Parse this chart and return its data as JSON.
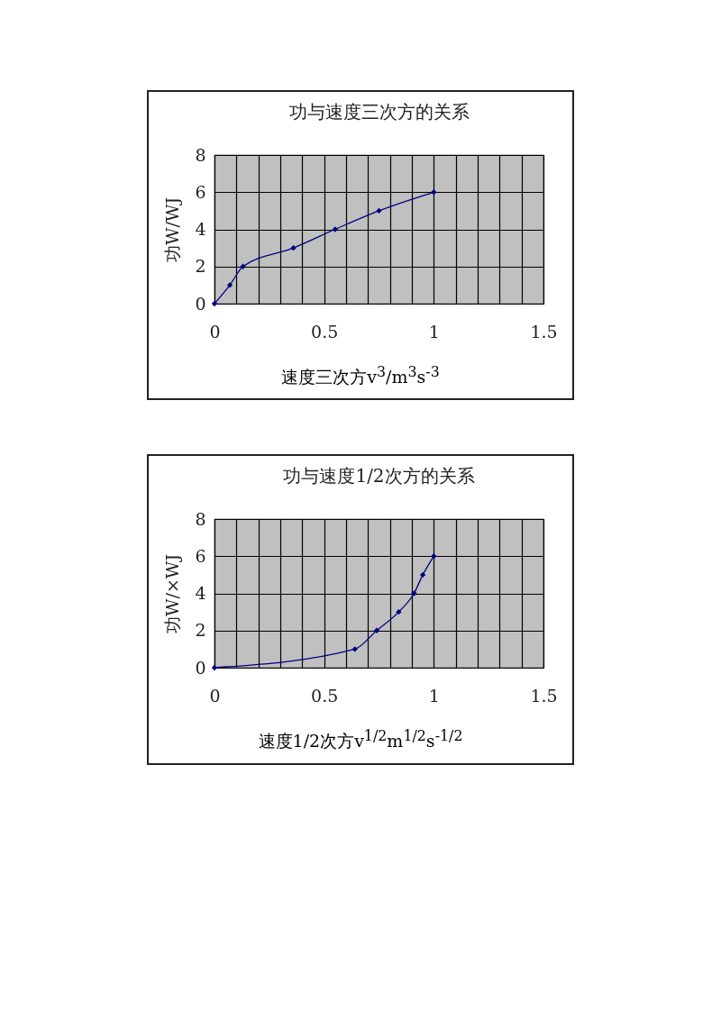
{
  "chart_data": [
    {
      "type": "line",
      "title": "功与速度三次方的关系",
      "xlabel": "速度三次方v$^{3}$/m$^{3}$s$^{-3}$",
      "ylabel": "功W/WJ",
      "series": [
        {
          "color": "#000080",
          "x": [
            0,
            0.07,
            0.13,
            0.36,
            0.55,
            0.75,
            1
          ],
          "values": [
            0,
            1,
            2,
            3,
            4,
            5,
            6
          ]
        }
      ],
      "xlim": [
        0,
        1.5
      ],
      "xticks": [
        0,
        {
          "value": 0.1,
          "label": null
        },
        {
          "value": 0.2,
          "label": null
        },
        {
          "value": 0.3,
          "label": null
        },
        {
          "value": 0.4,
          "label": null
        },
        0.5,
        {
          "value": 0.6,
          "label": null
        },
        {
          "value": 0.7,
          "label": null
        },
        {
          "value": 0.8,
          "label": null
        },
        {
          "value": 0.9,
          "label": null
        },
        1,
        {
          "value": 1.1,
          "label": null
        },
        {
          "value": 1.2,
          "label": null
        },
        {
          "value": 1.3,
          "label": null
        },
        {
          "value": 1.4,
          "label": null
        },
        1.5
      ],
      "ylim": [
        0,
        8
      ],
      "yticks": [
        0,
        2,
        4,
        6,
        8
      ],
      "grid": true,
      "marker": "diamond",
      "line_style": "solid"
    },
    {
      "type": "line",
      "title": "功与速度1/2次方的关系",
      "xlabel": "速度1/2次方v$^{1/2}$m$^{1/2}$s$^{-1/2}$",
      "ylabel": "功W/×WJ",
      "series": [
        {
          "color": "#000080",
          "x": [
            0,
            0.64,
            0.74,
            0.84,
            0.91,
            0.95,
            1
          ],
          "values": [
            0,
            1,
            2,
            3,
            4,
            5,
            6
          ]
        }
      ],
      "xlim": [
        0,
        1.5
      ],
      "xticks": [
        0,
        {
          "value": 0.1,
          "label": null
        },
        {
          "value": 0.2,
          "label": null
        },
        {
          "value": 0.3,
          "label": null
        },
        {
          "value": 0.4,
          "label": null
        },
        0.5,
        {
          "value": 0.6,
          "label": null
        },
        {
          "value": 0.7,
          "label": null
        },
        {
          "value": 0.8,
          "label": null
        },
        {
          "value": 0.9,
          "label": null
        },
        1,
        {
          "value": 1.1,
          "label": null
        },
        {
          "value": 1.2,
          "label": null
        },
        {
          "value": 1.3,
          "label": null
        },
        {
          "value": 1.4,
          "label": null
        },
        1.5
      ],
      "ylim": [
        0,
        8
      ],
      "yticks": [
        0,
        2,
        4,
        6,
        8
      ],
      "grid": true,
      "marker": "diamond",
      "line_style": "solid"
    }
  ]
}
